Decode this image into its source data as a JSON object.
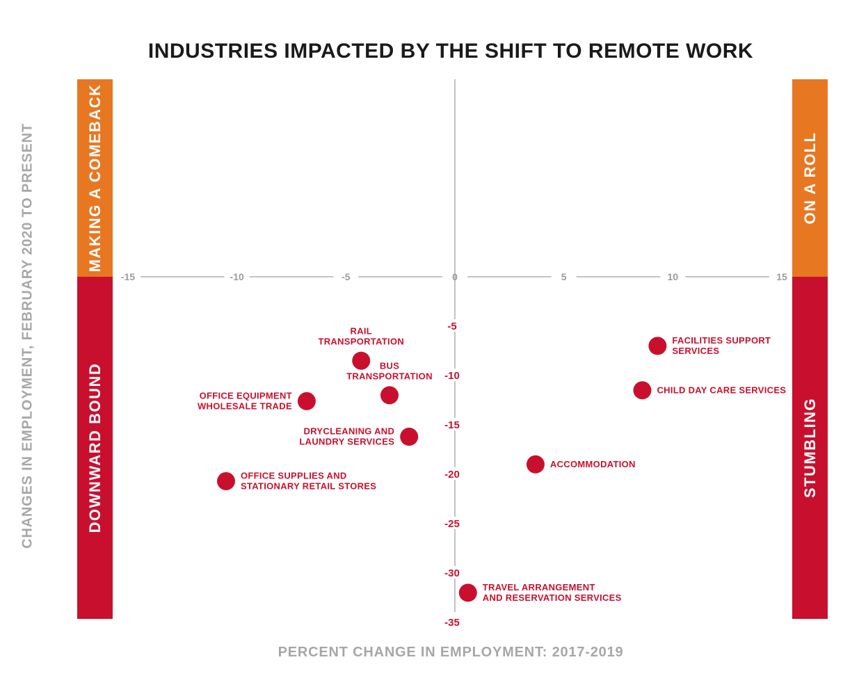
{
  "colors": {
    "orange": "#E87722",
    "red": "#C8102E",
    "axis": "#A0A0A0",
    "text_dark": "#1A1A1A",
    "axis_title": "#A7A7A7"
  },
  "chart_data": {
    "type": "scatter",
    "title": "INDUSTRIES IMPACTED BY THE SHIFT TO REMOTE WORK",
    "xlabel": "PERCENT CHANGE IN EMPLOYMENT: 2017-2019",
    "ylabel": "CHANGES IN EMPLOYMENT, FEBRUARY 2020 TO PRESENT",
    "xlim": [
      -15,
      15
    ],
    "ylim": [
      -35,
      20
    ],
    "x_ticks": [
      "-15",
      "-10",
      "-5",
      "0",
      "5",
      "10",
      "15"
    ],
    "y_ticks": [
      "-5",
      "-10",
      "-15",
      "-20",
      "-25",
      "-30",
      "-35"
    ],
    "quadrants": {
      "top_left": "MAKING A COMEBACK",
      "top_right": "ON A ROLL",
      "bottom_left": "DOWNWARD BOUND",
      "bottom_right": "STUMBLING"
    },
    "points": [
      {
        "name": "RAIL TRANSPORTATION",
        "label_lines": [
          "RAIL",
          "TRANSPORTATION"
        ],
        "x": -4.3,
        "y": -8.5,
        "label_pos": "above"
      },
      {
        "name": "BUS TRANSPORTATION",
        "label_lines": [
          "BUS",
          "TRANSPORTATION"
        ],
        "x": -3.0,
        "y": -12.0,
        "label_pos": "above"
      },
      {
        "name": "OFFICE EQUIPMENT WHOLESALE TRADE",
        "label_lines": [
          "OFFICE EQUIPMENT",
          "WHOLESALE TRADE"
        ],
        "x": -6.8,
        "y": -12.6,
        "label_pos": "left"
      },
      {
        "name": "DRYCLEANING AND LAUNDRY SERVICES",
        "label_lines": [
          "DRYCLEANING AND",
          "LAUNDRY SERVICES"
        ],
        "x": -2.1,
        "y": -16.2,
        "label_pos": "left"
      },
      {
        "name": "OFFICE SUPPLIES AND STATIONARY RETAIL STORES",
        "label_lines": [
          "OFFICE SUPPLIES AND",
          "STATIONARY RETAIL STORES"
        ],
        "x": -10.5,
        "y": -20.7,
        "label_pos": "right"
      },
      {
        "name": "FACILITIES SUPPORT SERVICES",
        "label_lines": [
          "FACILITIES SUPPORT",
          "SERVICES"
        ],
        "x": 9.3,
        "y": -7.0,
        "label_pos": "right"
      },
      {
        "name": "CHILD DAY CARE SERVICES",
        "label_lines": [
          "CHILD DAY CARE SERVICES"
        ],
        "x": 8.6,
        "y": -11.5,
        "label_pos": "right"
      },
      {
        "name": "ACCOMMODATION",
        "label_lines": [
          "ACCOMMODATION"
        ],
        "x": 3.7,
        "y": -19.0,
        "label_pos": "right"
      },
      {
        "name": "TRAVEL ARRANGEMENT AND RESERVATION SERVICES",
        "label_lines": [
          "TRAVEL ARRANGEMENT",
          "AND RESERVATION SERVICES"
        ],
        "x": 0.6,
        "y": -32.0,
        "label_pos": "right"
      }
    ]
  }
}
